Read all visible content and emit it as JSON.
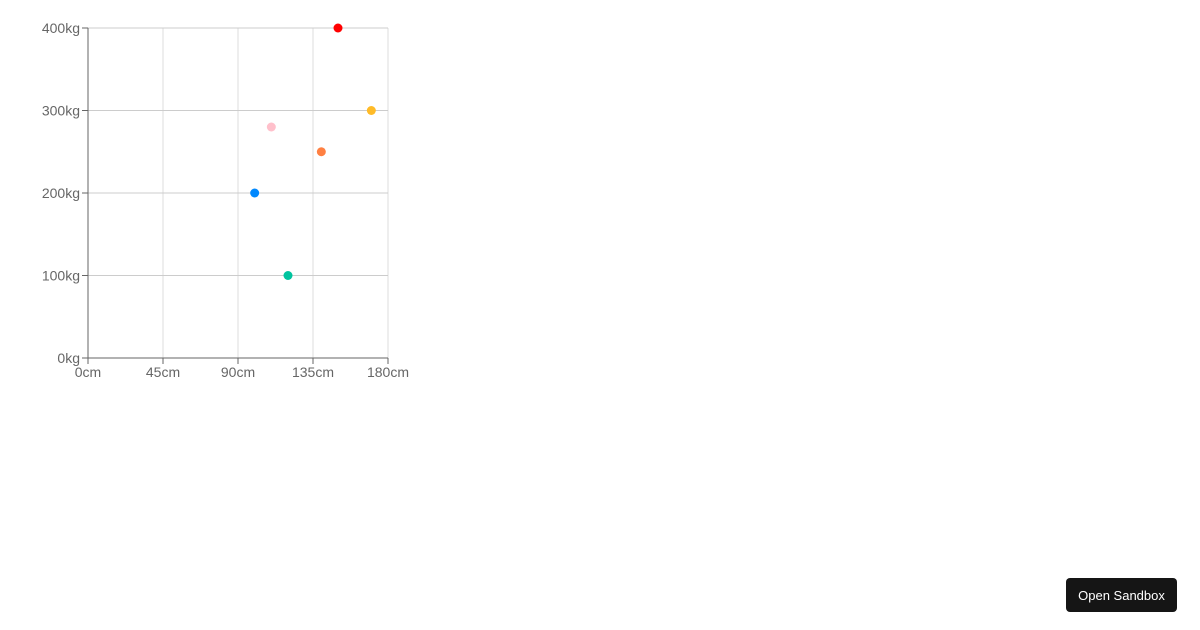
{
  "chart_data": {
    "type": "scatter",
    "x_unit": "cm",
    "y_unit": "kg",
    "xlim": [
      0,
      180
    ],
    "ylim": [
      0,
      400
    ],
    "x_ticks": [
      "0cm",
      "45cm",
      "90cm",
      "135cm",
      "180cm"
    ],
    "y_ticks": [
      "0kg",
      "100kg",
      "200kg",
      "300kg",
      "400kg"
    ],
    "grid": true,
    "points": [
      {
        "x": 100,
        "y": 200,
        "color": "#0088FE"
      },
      {
        "x": 120,
        "y": 100,
        "color": "#00C49F"
      },
      {
        "x": 170,
        "y": 300,
        "color": "#FFBB28"
      },
      {
        "x": 140,
        "y": 250,
        "color": "#FF8042"
      },
      {
        "x": 150,
        "y": 400,
        "color": "#FF0000"
      },
      {
        "x": 110,
        "y": 280,
        "color": "#FFC0CB"
      }
    ]
  },
  "footer": {
    "open_sandbox_label": "Open Sandbox"
  }
}
